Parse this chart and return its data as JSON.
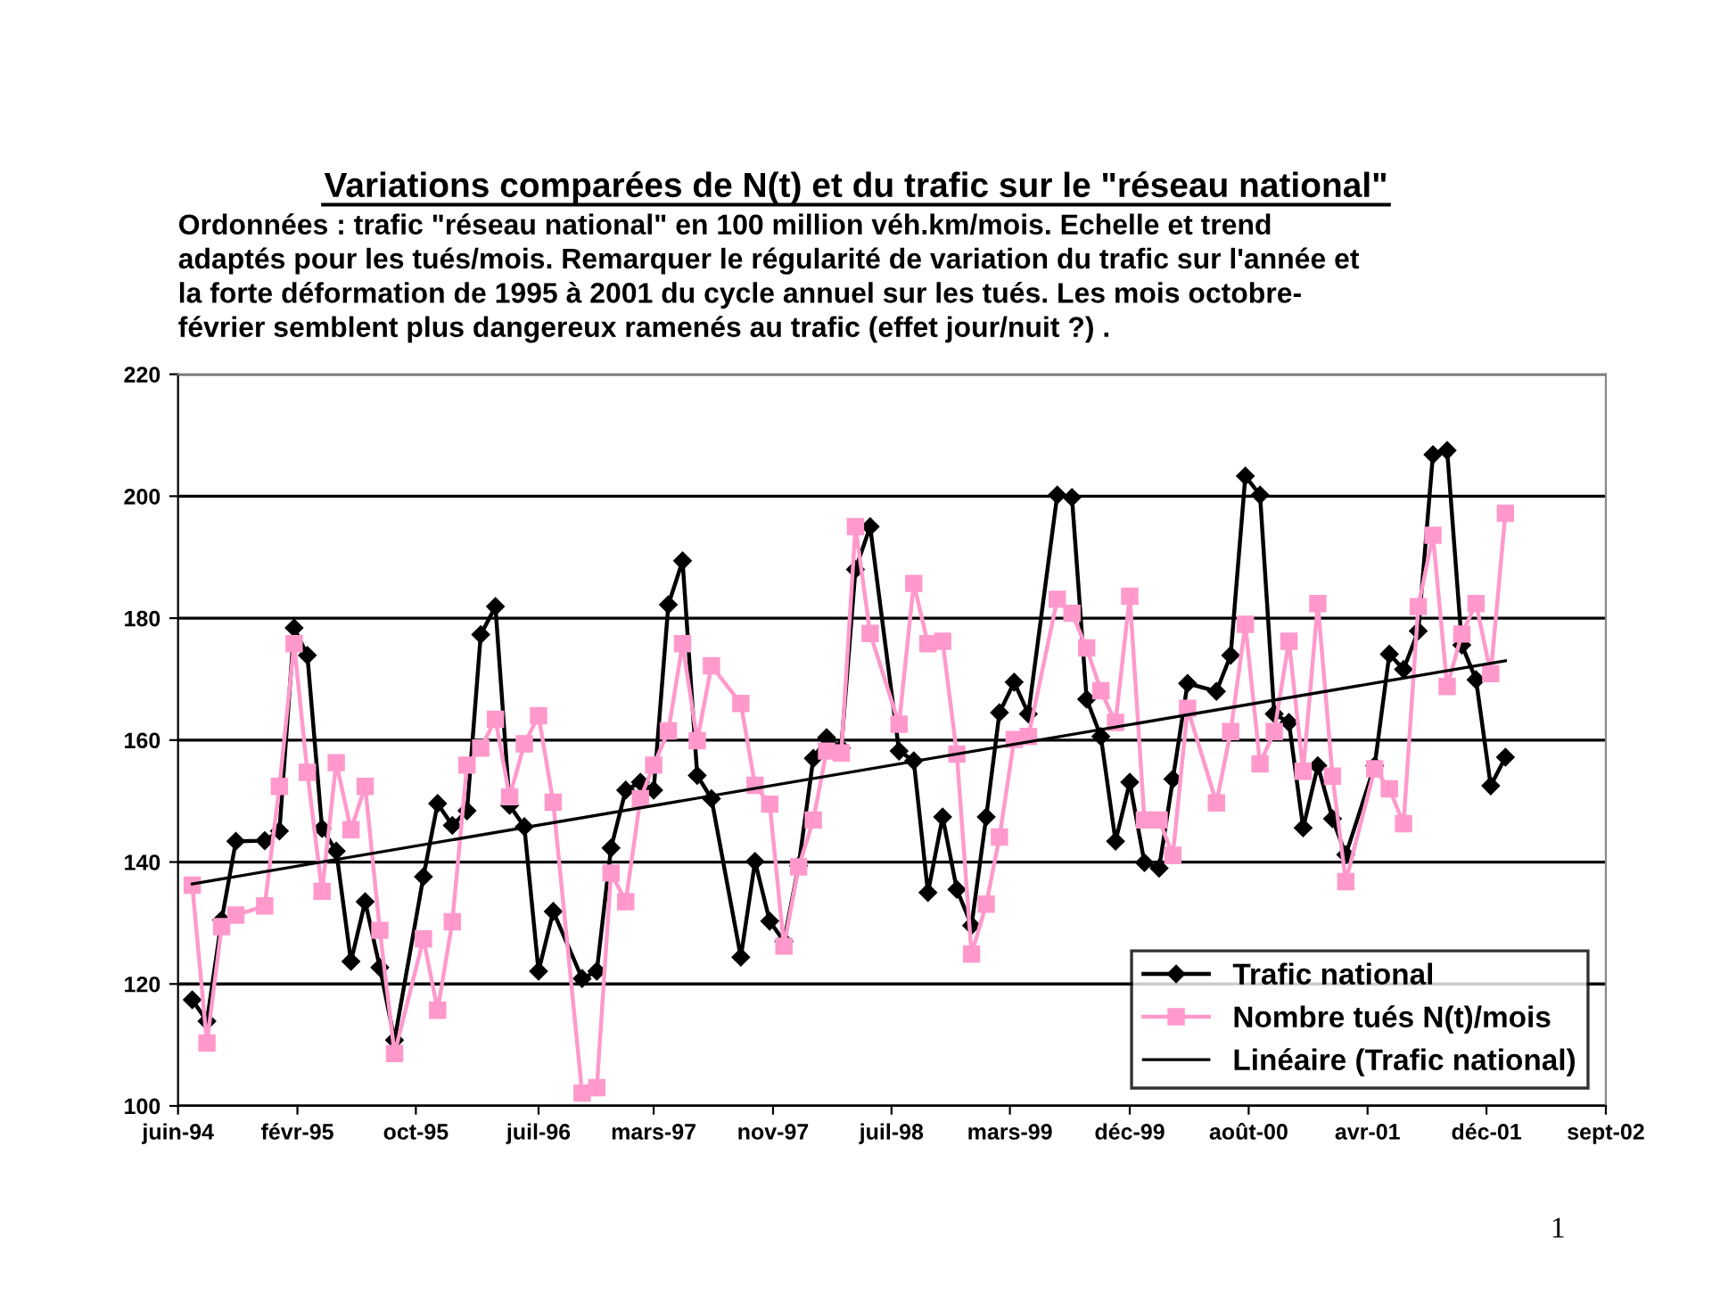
{
  "chart_data": {
    "type": "line",
    "title": "Variations comparées de N(t) et du trafic sur le \"réseau national\"",
    "subtitle": "Ordonnées : trafic \"réseau national\" en 100 million véh.km/mois. Echelle et trend\nadaptés pour les tués/mois. Remarquer le régularité de variation du trafic sur l'année et\nla forte déformation de 1995 à 2001 du cycle annuel sur les tués. Les mois octobre-\nfévrier semblent plus dangereux ramenés au trafic (effet jour/nuit ?) .",
    "x": [
      "1994-07",
      "1994-08",
      "1994-09",
      "1994-10",
      "1994-12",
      "1995-01",
      "1995-02",
      "1995-03",
      "1995-04",
      "1995-05",
      "1995-06",
      "1995-07",
      "1995-08",
      "1995-09",
      "1995-11",
      "1995-12",
      "1996-01",
      "1996-02",
      "1996-03",
      "1996-04",
      "1996-05",
      "1996-06",
      "1996-07",
      "1996-08",
      "1996-10",
      "1996-11",
      "1996-12",
      "1997-01",
      "1997-02",
      "1997-03",
      "1997-04",
      "1997-05",
      "1997-06",
      "1997-07",
      "1997-09",
      "1997-10",
      "1997-11",
      "1997-12",
      "1998-01",
      "1998-02",
      "1998-03",
      "1998-04",
      "1998-05",
      "1998-06",
      "1998-08",
      "1998-09",
      "1998-10",
      "1998-11",
      "1998-12",
      "1999-01",
      "1999-02",
      "1999-03",
      "1999-04",
      "1999-05",
      "1999-07",
      "1999-08",
      "1999-09",
      "1999-10",
      "1999-11",
      "1999-12",
      "2000-01",
      "2000-02",
      "2000-03",
      "2000-04",
      "2000-06",
      "2000-07",
      "2000-08",
      "2000-09",
      "2000-10",
      "2000-11",
      "2000-12",
      "2001-01",
      "2001-02",
      "2001-03",
      "2001-05",
      "2001-06",
      "2001-07",
      "2001-08",
      "2001-09",
      "2001-10",
      "2001-11",
      "2001-12",
      "2002-01",
      "2002-02"
    ],
    "series": [
      {
        "name": "Trafic national",
        "color": "#000000",
        "marker": "diamond",
        "values": [
          117.4,
          113.9,
          130.5,
          143.4,
          143.5,
          145.1,
          178.4,
          173.9,
          145.5,
          141.8,
          123.7,
          133.5,
          122.7,
          110.8,
          137.6,
          149.6,
          146.0,
          148.4,
          177.3,
          181.9,
          149.3,
          145.8,
          122.1,
          131.9,
          120.9,
          122.1,
          142.3,
          151.8,
          153.1,
          151.8,
          182.2,
          189.4,
          154.2,
          150.4,
          124.4,
          140.1,
          130.3,
          127.0,
          139.4,
          157.0,
          160.4,
          158.7,
          188.0,
          195.0,
          158.2,
          156.6,
          135.0,
          147.4,
          135.5,
          129.6,
          147.4,
          164.5,
          169.5,
          164.3,
          200.2,
          199.8,
          166.7,
          160.6,
          143.4,
          153.1,
          139.9,
          139.0,
          153.6,
          169.3,
          168.0,
          173.9,
          203.3,
          200.2,
          164.3,
          162.9,
          145.6,
          155.8,
          147.1,
          141.2,
          155.8,
          174.1,
          171.6,
          177.9,
          206.8,
          207.5,
          175.6,
          169.9,
          152.5,
          157.2
        ]
      },
      {
        "name": "Nombre tués N(t)/mois",
        "color": "#ff99cc",
        "marker": "square",
        "values": [
          136.2,
          110.3,
          129.4,
          131.3,
          132.8,
          152.4,
          175.8,
          154.7,
          135.2,
          156.3,
          145.3,
          152.4,
          128.8,
          108.6,
          127.4,
          115.7,
          130.2,
          155.9,
          158.7,
          163.4,
          150.7,
          159.4,
          164.0,
          149.8,
          102.1,
          103.0,
          138.2,
          133.5,
          150.4,
          155.9,
          161.5,
          175.8,
          159.9,
          172.2,
          166.0,
          152.6,
          149.5,
          126.2,
          139.2,
          146.9,
          158.2,
          157.9,
          195.0,
          177.5,
          162.6,
          185.7,
          175.8,
          176.2,
          157.7,
          124.9,
          133.1,
          144.1,
          160.1,
          160.6,
          183.1,
          180.8,
          175.1,
          168.1,
          162.9,
          183.6,
          146.9,
          146.9,
          141.1,
          165.2,
          149.7,
          161.4,
          179.0,
          156.1,
          161.4,
          176.2,
          154.9,
          182.4,
          154.1,
          136.8,
          155.3,
          152.0,
          146.3,
          181.9,
          193.6,
          168.8,
          177.4,
          182.4,
          170.9,
          197.2
        ]
      },
      {
        "name": "Linéaire (Trafic national)",
        "color": "#000000",
        "marker": "none",
        "x": [
          "1994-07",
          "2002-02"
        ],
        "values": [
          136.4,
          173.0
        ]
      }
    ],
    "xlim": [
      "1994-06-01",
      "2002-09-01"
    ],
    "xticks": [
      {
        "value": "1994-06-01",
        "label": "juin-94"
      },
      {
        "value": "1995-02-08",
        "label": "févr-95"
      },
      {
        "value": "1995-10-16",
        "label": "oct-95"
      },
      {
        "value": "1996-07-01",
        "label": "juil-96"
      },
      {
        "value": "1997-03-01",
        "label": "mars-97"
      },
      {
        "value": "1997-11-08",
        "label": "nov-97"
      },
      {
        "value": "1998-07-16",
        "label": "juil-98"
      },
      {
        "value": "1999-03-23",
        "label": "mars-99"
      },
      {
        "value": "1999-12-01",
        "label": "déc-99"
      },
      {
        "value": "2000-08-08",
        "label": "août-00"
      },
      {
        "value": "2001-04-16",
        "label": "avr-01"
      },
      {
        "value": "2001-12-23",
        "label": "déc-01"
      },
      {
        "value": "2002-09-01",
        "label": "sept-02"
      }
    ],
    "ylim": [
      100,
      220
    ],
    "yticks": [
      100,
      120,
      140,
      160,
      180,
      200,
      220
    ],
    "grid": "y",
    "legend": "bottom right",
    "annotations": [
      "1"
    ]
  }
}
